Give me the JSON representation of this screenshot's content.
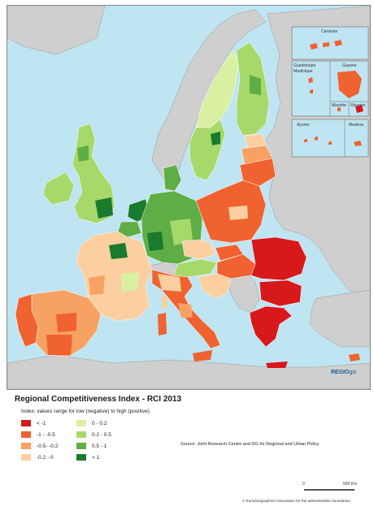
{
  "title": "Regional Competitiveness Index - RCI 2013",
  "subtitle": "Index: values range for low (negative) to high (positive)",
  "legend": [
    {
      "label": "< -1",
      "color": "#d7191c"
    },
    {
      "label": "-1 - -0.5",
      "color": "#f0622f"
    },
    {
      "label": "-0.5- -0.2",
      "color": "#f7a162"
    },
    {
      "label": "-0.2 - 0",
      "color": "#fbcf9f"
    },
    {
      "label": "0 - 0.2",
      "color": "#d9f0a3"
    },
    {
      "label": "0.2 - 0.5",
      "color": "#a6d96a"
    },
    {
      "label": "0.5 - 1",
      "color": "#5fae45"
    },
    {
      "label": "> 1",
      "color": "#1a7a2e"
    }
  ],
  "source": "Source: Joint Research Centre and DG for Regional and Urban Policy",
  "scale": {
    "zero": "0",
    "max": "500 Km"
  },
  "copyright": "© EuroGeographics Association for the administrative boundaries",
  "logo": {
    "bold": "REGIO",
    "thin": "gis"
  },
  "insets": {
    "canarias": "Canarias",
    "guadeloupe": "Guadeloupe",
    "martinique": "Martinique",
    "guyane": "Guyane",
    "mayotte": "Mayotte",
    "reunion": "Réunion",
    "acores": "Açores",
    "madeira": "Madeira"
  },
  "map_data": {
    "type": "choropleth",
    "regions": [
      {
        "region": "Norway",
        "class": "non-EU"
      },
      {
        "region": "Sweden north",
        "class": "0 - 0.2"
      },
      {
        "region": "Sweden south",
        "class": "0.2 - 0.5"
      },
      {
        "region": "Stockholm",
        "class": "> 1"
      },
      {
        "region": "Finland",
        "class": "0.2 - 0.5"
      },
      {
        "region": "Estonia",
        "class": "-0.2 - 0"
      },
      {
        "region": "Latvia",
        "class": "-0.5- -0.2"
      },
      {
        "region": "Lithuania",
        "class": "-0.5- -0.2"
      },
      {
        "region": "Ireland",
        "class": "0.2 - 0.5"
      },
      {
        "region": "United Kingdom",
        "class": "0.2 - 0.5"
      },
      {
        "region": "London",
        "class": "> 1"
      },
      {
        "region": "Denmark",
        "class": "0.5 - 1"
      },
      {
        "region": "Netherlands",
        "class": "> 1"
      },
      {
        "region": "Belgium",
        "class": "0.5 - 1"
      },
      {
        "region": "Germany",
        "class": "0.5 - 1"
      },
      {
        "region": "France",
        "class": "-0.2 - 0"
      },
      {
        "region": "Île-de-France",
        "class": "> 1"
      },
      {
        "region": "Spain",
        "class": "-0.5- -0.2"
      },
      {
        "region": "Portugal",
        "class": "-1 - -0.5"
      },
      {
        "region": "Poland",
        "class": "-1 - -0.5"
      },
      {
        "region": "Czech Republic",
        "class": "-0.2 - 0"
      },
      {
        "region": "Austria",
        "class": "0.2 - 0.5"
      },
      {
        "region": "Italy north",
        "class": "-0.2 - 0"
      },
      {
        "region": "Italy south",
        "class": "-1 - -0.5"
      },
      {
        "region": "Slovenia",
        "class": "-0.2 - 0"
      },
      {
        "region": "Hungary",
        "class": "-1 - -0.5"
      },
      {
        "region": "Slovakia",
        "class": "-1 - -0.5"
      },
      {
        "region": "Romania",
        "class": "< -1"
      },
      {
        "region": "Bulgaria",
        "class": "< -1"
      },
      {
        "region": "Greece",
        "class": "< -1"
      },
      {
        "region": "Cyprus",
        "class": "-1 - -0.5"
      },
      {
        "region": "Guyane",
        "class": "-1 - -0.5"
      }
    ]
  }
}
